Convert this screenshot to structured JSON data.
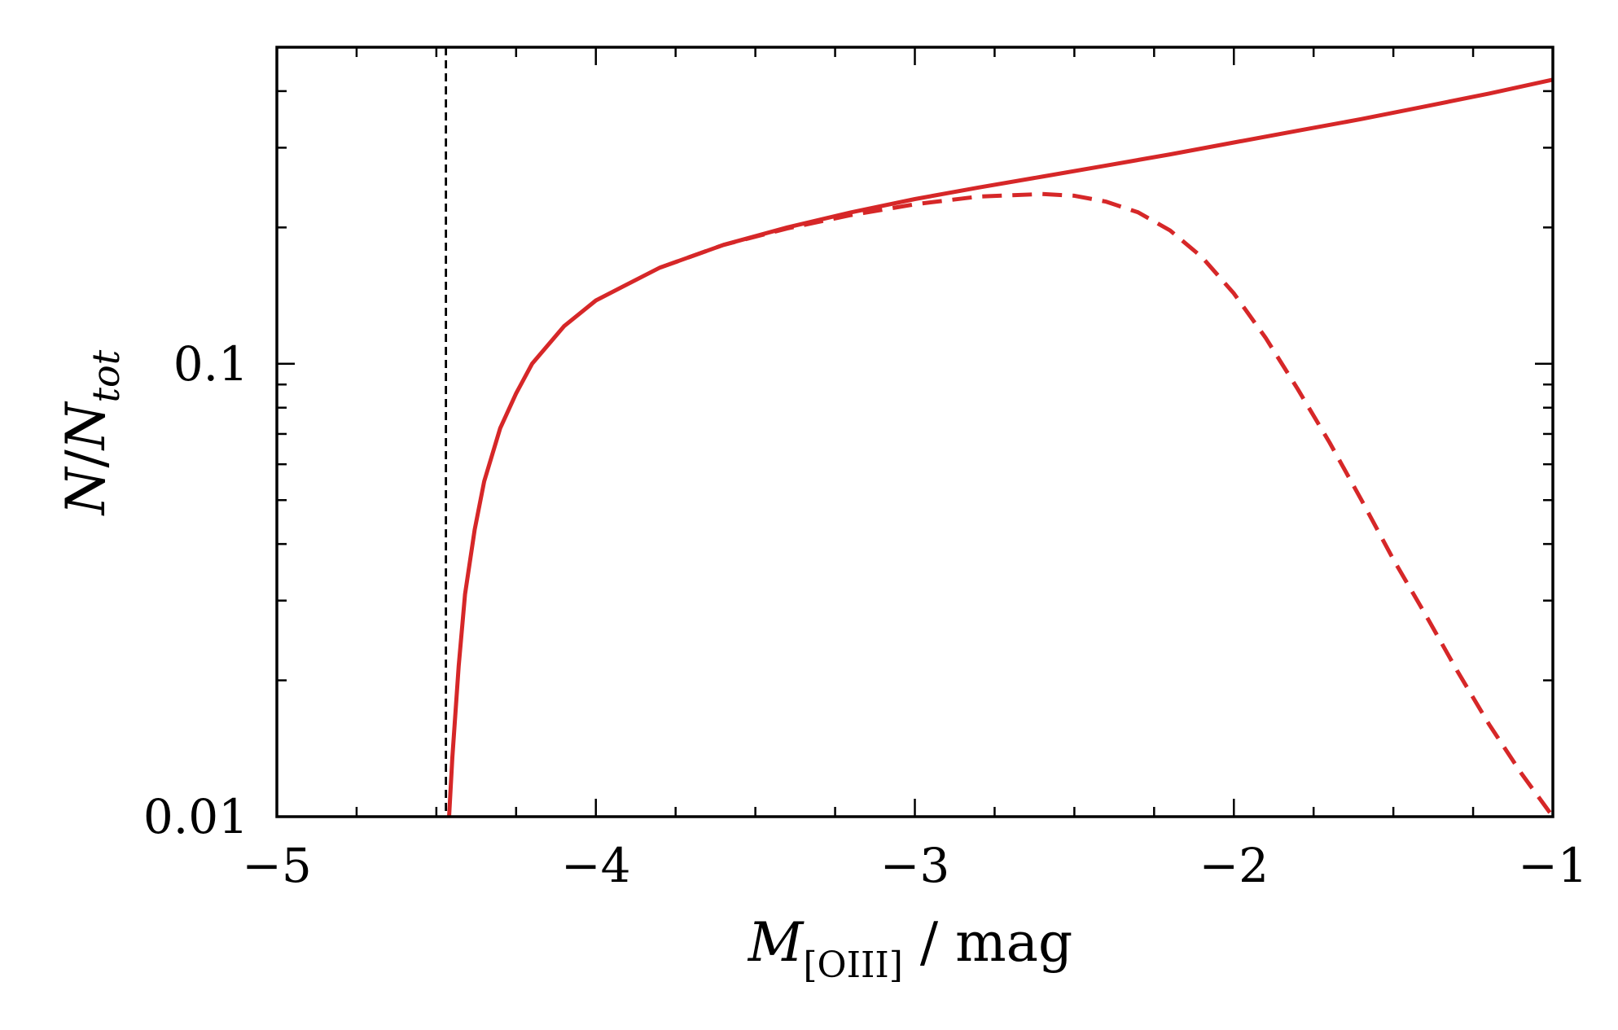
{
  "chart_data": {
    "type": "line",
    "title": "",
    "xlabel": {
      "main": "M",
      "subscript": "[OIII]",
      "suffix": " / mag"
    },
    "ylabel": {
      "numerator": "N",
      "slash": "/",
      "denominator": "N",
      "subscript": "tot"
    },
    "xlim": [
      -5,
      -1
    ],
    "ylim": [
      0.01,
      0.5
    ],
    "yscale": "log",
    "grid": false,
    "legend": "none",
    "x_ticks": [
      {
        "value": -5,
        "label": "−5"
      },
      {
        "value": -4,
        "label": "−4"
      },
      {
        "value": -3,
        "label": "−3"
      },
      {
        "value": -2,
        "label": "−2"
      },
      {
        "value": -1,
        "label": "−1"
      }
    ],
    "y_ticks": [
      {
        "value": 0.01,
        "label": "0.01"
      },
      {
        "value": 0.1,
        "label": "0.1"
      }
    ],
    "vlines": [
      {
        "x": -4.47,
        "style": "dashed",
        "color": "#000000"
      }
    ],
    "series": [
      {
        "style": "solid",
        "color": "#d62728",
        "x": [
          -4.46,
          -4.45,
          -4.43,
          -4.41,
          -4.38,
          -4.35,
          -4.3,
          -4.25,
          -4.2,
          -4.1,
          -4.0,
          -3.8,
          -3.6,
          -3.4,
          -3.2,
          -3.0,
          -2.8,
          -2.6,
          -2.4,
          -2.2,
          -2.0,
          -1.8,
          -1.6,
          -1.4,
          -1.2,
          -1.0
        ],
        "y": [
          0.0098,
          0.0135,
          0.0215,
          0.031,
          0.043,
          0.055,
          0.072,
          0.086,
          0.1,
          0.121,
          0.138,
          0.163,
          0.183,
          0.2,
          0.216,
          0.231,
          0.245,
          0.259,
          0.274,
          0.29,
          0.308,
          0.327,
          0.347,
          0.37,
          0.395,
          0.424
        ]
      },
      {
        "style": "dashed",
        "color": "#d62728",
        "x": [
          -3.8,
          -3.6,
          -3.4,
          -3.2,
          -3.0,
          -2.8,
          -2.6,
          -2.5,
          -2.4,
          -2.3,
          -2.2,
          -2.1,
          -2.0,
          -1.9,
          -1.8,
          -1.7,
          -1.6,
          -1.5,
          -1.4,
          -1.3,
          -1.2,
          -1.1,
          -1.0
        ],
        "y": [
          0.163,
          0.183,
          0.199,
          0.213,
          0.225,
          0.234,
          0.237,
          0.235,
          0.228,
          0.216,
          0.197,
          0.172,
          0.143,
          0.114,
          0.088,
          0.067,
          0.05,
          0.037,
          0.028,
          0.021,
          0.016,
          0.0125,
          0.01
        ]
      }
    ]
  }
}
